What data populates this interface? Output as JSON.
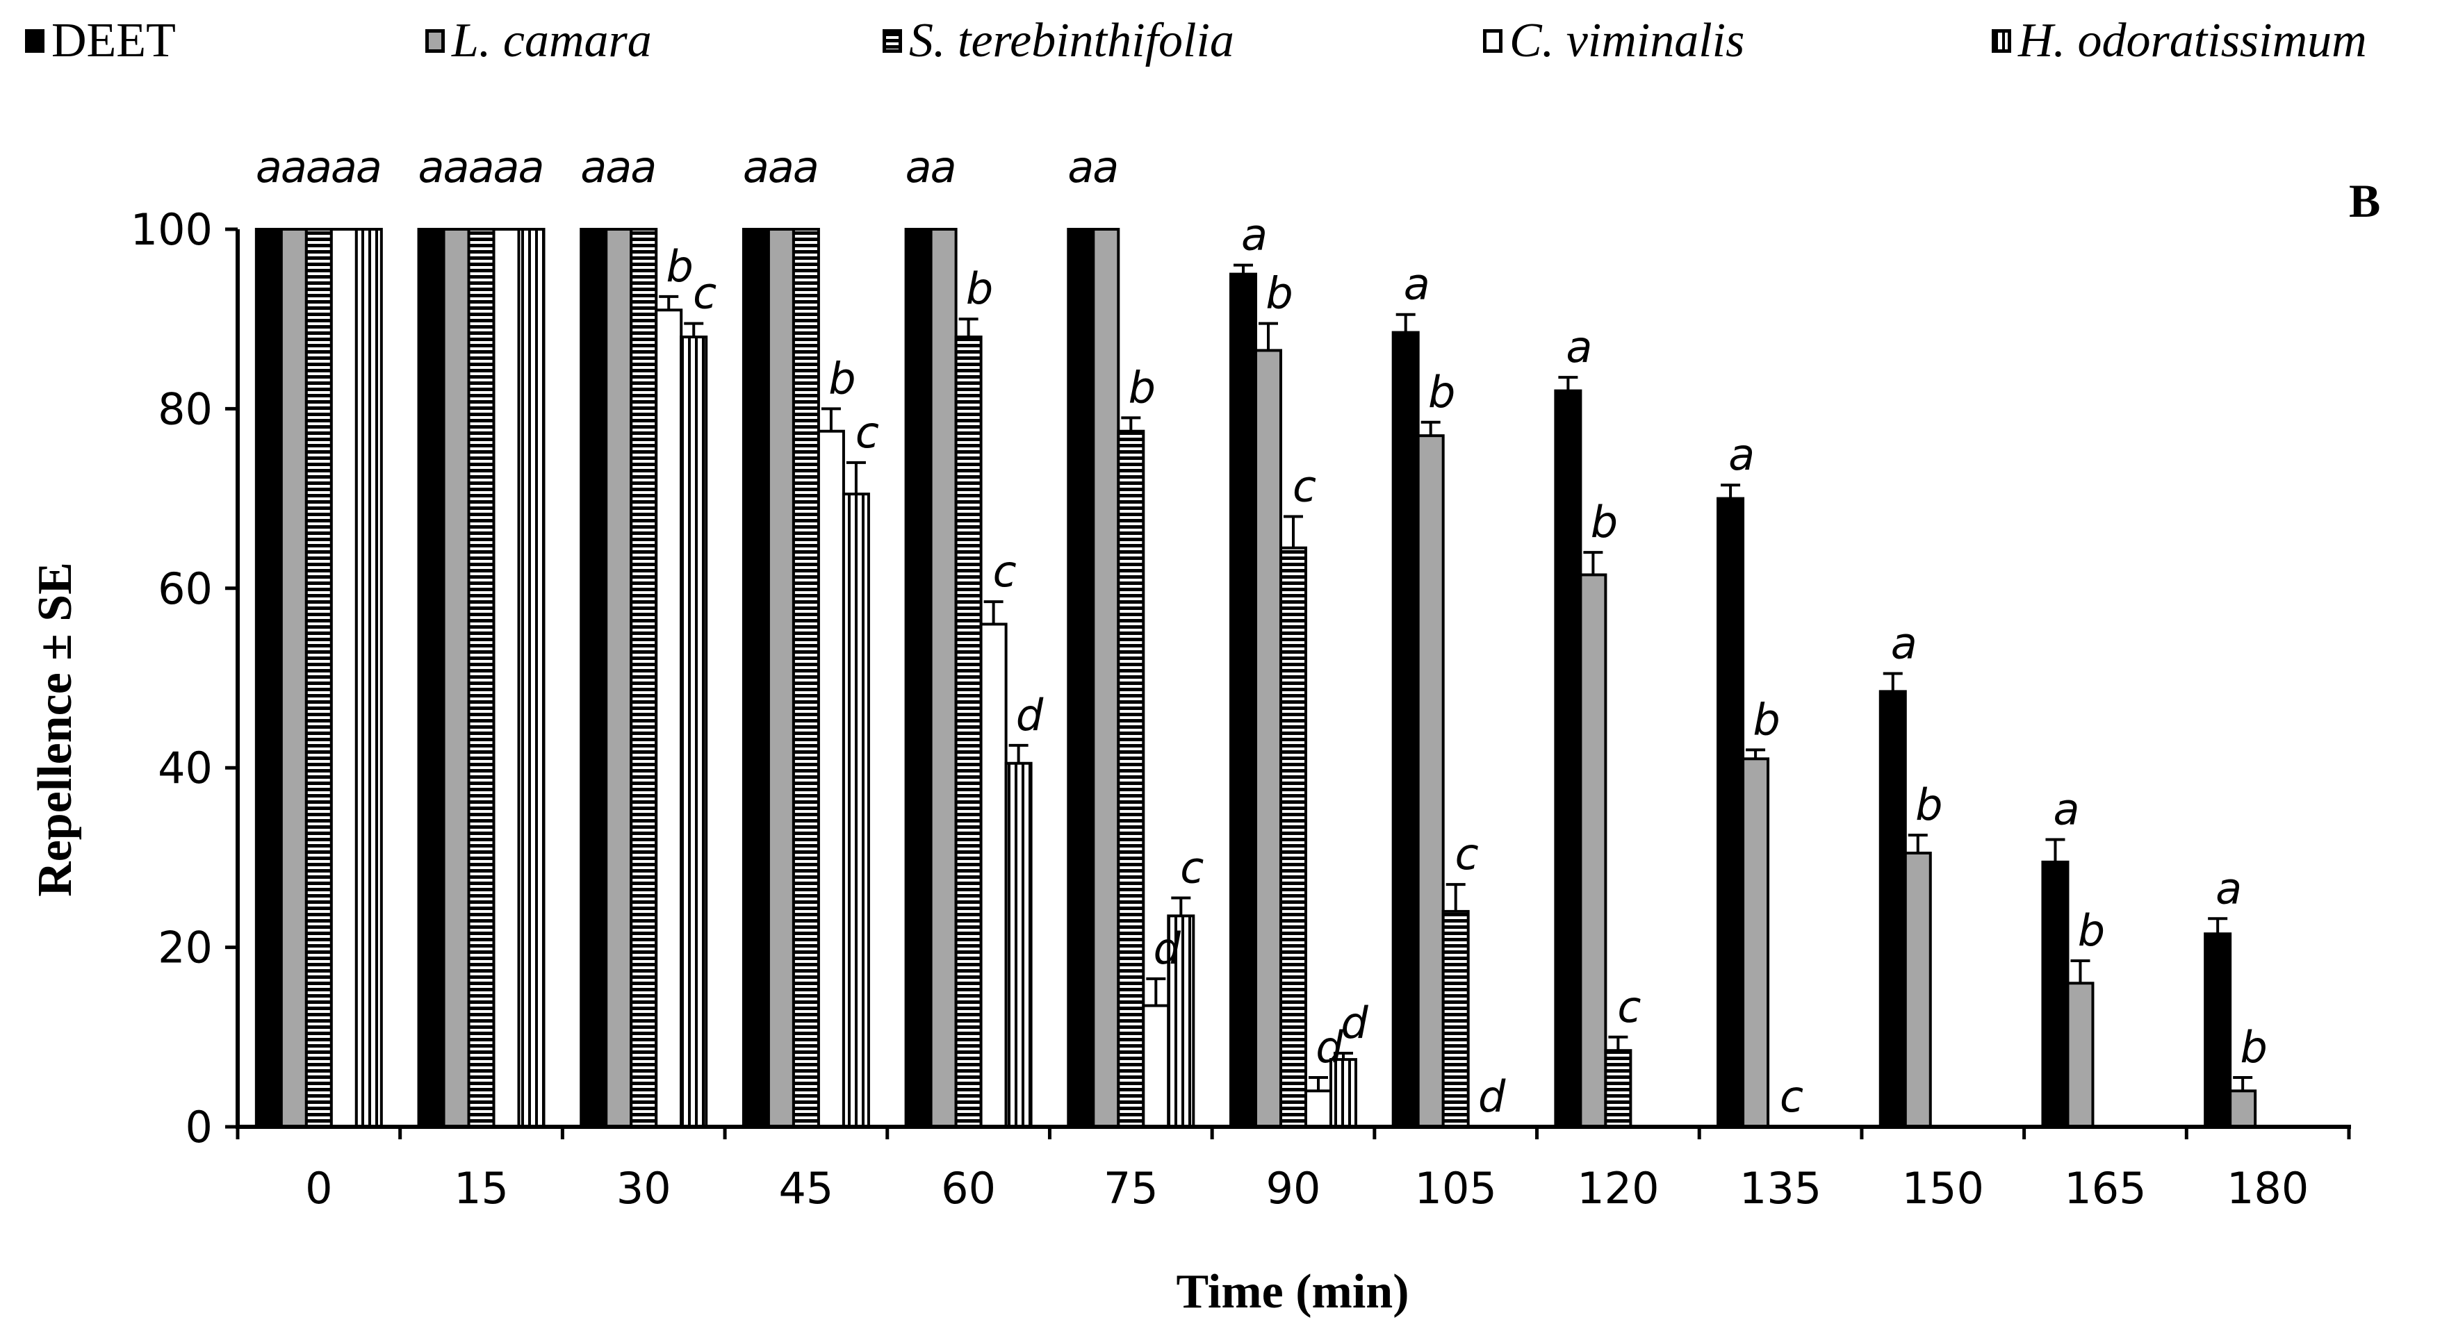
{
  "chart_data": {
    "type": "bar",
    "panel_label": "B",
    "xlabel": "Time (min)",
    "ylabel": "Repellence ± SE",
    "ylim": [
      0,
      100
    ],
    "yticks": [
      "0",
      "20",
      "40",
      "60",
      "80",
      "100"
    ],
    "categories": [
      "0",
      "15",
      "30",
      "45",
      "60",
      "75",
      "90",
      "105",
      "120",
      "135",
      "150",
      "165",
      "180"
    ],
    "legend_position": "top",
    "series": [
      {
        "name": "DEET",
        "italic": false,
        "fill": "#000000",
        "pattern": "solid",
        "values": [
          100,
          100,
          100,
          100,
          100,
          100,
          95,
          88.5,
          82,
          70,
          48.5,
          29.5,
          21.5
        ],
        "errors": [
          0,
          0,
          0,
          0,
          0,
          0,
          1,
          2,
          1.5,
          1.5,
          2,
          2.5,
          1.7
        ],
        "letters": [
          "a",
          "a",
          "a",
          "a",
          "a",
          "a",
          "a",
          "a",
          "a",
          "a",
          "a",
          "a",
          "a"
        ]
      },
      {
        "name": "L. camara",
        "italic": true,
        "fill": "#a6a6a6",
        "pattern": "solid",
        "values": [
          100,
          100,
          100,
          100,
          100,
          100,
          86.5,
          77,
          61.5,
          41,
          30.5,
          16,
          4
        ],
        "errors": [
          0,
          0,
          0,
          0,
          0,
          0,
          3,
          1.5,
          2.5,
          1,
          2,
          2.5,
          1.5
        ],
        "letters": [
          "a",
          "a",
          "a",
          "a",
          "a",
          "a",
          "b",
          "b",
          "b",
          "b",
          "b",
          "b",
          "b"
        ]
      },
      {
        "name": "S. terebinthifolia",
        "italic": true,
        "fill": "#ffffff",
        "pattern": "hlines",
        "values": [
          100,
          100,
          100,
          100,
          88,
          77.5,
          64.5,
          24,
          8.5,
          0,
          0,
          0,
          0
        ],
        "errors": [
          0,
          0,
          0,
          0,
          2,
          1.5,
          3.5,
          3,
          1.5,
          0,
          0,
          0,
          0
        ],
        "letters": [
          "a",
          "a",
          "a",
          "a",
          "b",
          "b",
          "c",
          "c",
          "c",
          "c",
          "",
          "",
          ""
        ]
      },
      {
        "name": "C. viminalis",
        "italic": true,
        "fill": "#ffffff",
        "pattern": "open",
        "values": [
          100,
          100,
          91,
          77.5,
          56,
          13.5,
          4,
          0,
          0,
          0,
          0,
          0,
          0
        ],
        "errors": [
          0,
          0,
          1.5,
          2.5,
          2.5,
          3,
          1.5,
          0,
          0,
          0,
          0,
          0,
          0
        ],
        "letters": [
          "a",
          "a",
          "b",
          "b",
          "c",
          "d",
          "d",
          "d",
          "",
          "",
          "",
          "",
          ""
        ]
      },
      {
        "name": "H. odoratissimum",
        "italic": true,
        "fill": "#ffffff",
        "pattern": "vlines",
        "values": [
          100,
          100,
          88,
          70.5,
          40.5,
          23.5,
          7.5,
          0,
          0,
          0,
          0,
          0,
          0
        ],
        "errors": [
          0,
          0,
          1.5,
          3.5,
          2,
          2,
          0.7,
          0,
          0,
          0,
          0,
          0,
          0
        ],
        "letters": [
          "a",
          "a",
          "c",
          "c",
          "d",
          "c",
          "d",
          "",
          "",
          "",
          "",
          "",
          ""
        ]
      }
    ]
  }
}
